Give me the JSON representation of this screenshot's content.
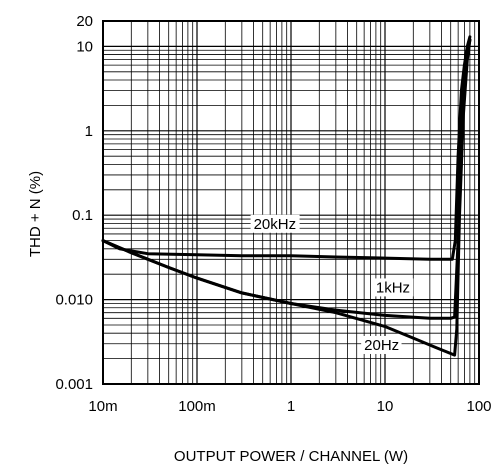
{
  "chart_data": {
    "type": "line",
    "title": "",
    "xlabel": "OUTPUT POWER / CHANNEL (W)",
    "ylabel": "THD + N (%)",
    "xscale": "log",
    "yscale": "log",
    "xlim": [
      0.01,
      100
    ],
    "ylim": [
      0.001,
      20
    ],
    "grid": true,
    "x_tick_labels": [
      {
        "value": 0.01,
        "label": "10m"
      },
      {
        "value": 0.1,
        "label": "100m"
      },
      {
        "value": 1,
        "label": "1"
      },
      {
        "value": 10,
        "label": "10"
      },
      {
        "value": 100,
        "label": "100"
      }
    ],
    "y_tick_labels": [
      {
        "value": 0.001,
        "label": "0.001"
      },
      {
        "value": 0.01,
        "label": "0.010"
      },
      {
        "value": 0.1,
        "label": "0.1"
      },
      {
        "value": 1,
        "label": "1"
      },
      {
        "value": 10,
        "label": "10"
      },
      {
        "value": 20,
        "label": "20"
      }
    ],
    "series": [
      {
        "name": "20kHz",
        "x": [
          0.01,
          0.015,
          0.03,
          0.1,
          0.3,
          1,
          3,
          10,
          30,
          52,
          56,
          60,
          65,
          70,
          75,
          80
        ],
        "y": [
          0.05,
          0.04,
          0.035,
          0.034,
          0.033,
          0.033,
          0.032,
          0.031,
          0.03,
          0.03,
          0.05,
          0.5,
          3,
          6,
          10,
          13
        ]
      },
      {
        "name": "1kHz",
        "x": [
          0.01,
          0.02,
          0.05,
          0.1,
          0.3,
          1,
          3,
          10,
          30,
          50,
          55,
          60,
          65,
          70,
          75,
          80
        ],
        "y": [
          0.05,
          0.036,
          0.024,
          0.018,
          0.012,
          0.009,
          0.0075,
          0.0065,
          0.006,
          0.006,
          0.0062,
          0.05,
          1,
          3.5,
          8,
          12
        ]
      },
      {
        "name": "20Hz",
        "x": [
          0.01,
          0.02,
          0.05,
          0.1,
          0.3,
          1,
          3,
          10,
          20,
          35,
          50,
          55,
          58,
          62,
          68,
          75,
          80
        ],
        "y": [
          0.05,
          0.036,
          0.024,
          0.018,
          0.012,
          0.009,
          0.007,
          0.0048,
          0.0035,
          0.0027,
          0.0023,
          0.0022,
          0.0045,
          0.1,
          1.5,
          7,
          12
        ]
      }
    ],
    "annotations": [
      {
        "text": "20kHz",
        "x": 0.4,
        "y": 0.071
      },
      {
        "text": "1kHz",
        "x": 8,
        "y": 0.0125
      },
      {
        "text": "20Hz",
        "x": 6,
        "y": 0.0026
      }
    ]
  }
}
